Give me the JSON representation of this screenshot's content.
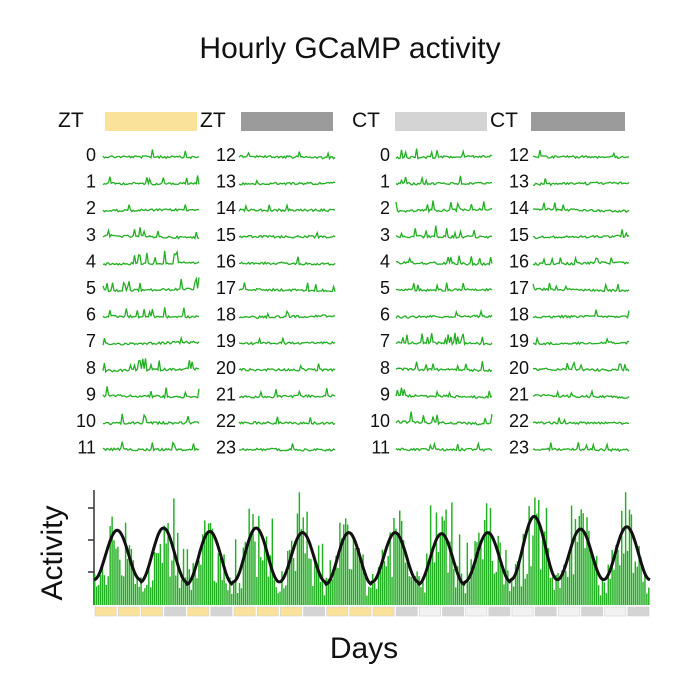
{
  "title": "Hourly GCaMP activity",
  "colors": {
    "trace": "#22b022",
    "bar": "#22b022",
    "fit": "#111111",
    "light_bar": "#fbe29a",
    "dark_bar": "#9b9b9b",
    "light_gray_bar": "#d4d4d4",
    "axis": "#333333"
  },
  "chart_data": [
    {
      "type": "line",
      "title": "",
      "panel": "ZT",
      "columns": [
        {
          "header": "ZT",
          "bar": "light",
          "rows": [
            "0",
            "1",
            "2",
            "3",
            "4",
            "5",
            "6",
            "7",
            "8",
            "9",
            "10",
            "11"
          ],
          "spikiness": [
            0.9,
            0.5,
            0.3,
            0.8,
            1.0,
            0.9,
            0.7,
            0.4,
            0.9,
            0.9,
            0.6,
            0.5
          ]
        },
        {
          "header": "ZT",
          "bar": "dark",
          "rows": [
            "12",
            "13",
            "14",
            "15",
            "16",
            "17",
            "18",
            "19",
            "20",
            "21",
            "22",
            "23"
          ],
          "spikiness": [
            0.3,
            0.2,
            0.2,
            0.2,
            0.4,
            0.5,
            0.2,
            0.4,
            0.2,
            0.6,
            0.3,
            0.4
          ]
        }
      ]
    },
    {
      "type": "line",
      "title": "",
      "panel": "CT",
      "columns": [
        {
          "header": "CT",
          "bar": "light_gray",
          "rows": [
            "0",
            "1",
            "2",
            "3",
            "4",
            "5",
            "6",
            "7",
            "8",
            "9",
            "10",
            "11"
          ],
          "spikiness": [
            0.7,
            0.6,
            0.8,
            0.9,
            0.5,
            0.6,
            0.3,
            0.9,
            1.0,
            0.4,
            0.9,
            0.4
          ]
        },
        {
          "header": "CT",
          "bar": "dark",
          "rows": [
            "12",
            "13",
            "14",
            "15",
            "16",
            "17",
            "18",
            "19",
            "20",
            "21",
            "22",
            "23"
          ],
          "spikiness": [
            0.3,
            0.3,
            0.4,
            0.6,
            0.3,
            0.3,
            0.4,
            0.4,
            0.6,
            0.2,
            0.3,
            0.4
          ]
        }
      ]
    },
    {
      "type": "bar",
      "title": "",
      "xlabel": "Days",
      "ylabel": "Activity",
      "days": 12,
      "hours_per_day": 24,
      "period_hours": 24,
      "fit_peaks": [
        0.65,
        0.67,
        0.64,
        0.67,
        0.63,
        0.63,
        0.63,
        0.62,
        0.63,
        0.77,
        0.66,
        0.68
      ],
      "fit_troughs": [
        0.22,
        0.2,
        0.18,
        0.2,
        0.2,
        0.18,
        0.2,
        0.18,
        0.2,
        0.22,
        0.22,
        0.22
      ],
      "day_bars": [
        [
          "light",
          "light"
        ],
        [
          "light",
          "gray"
        ],
        [
          "light",
          "gray"
        ],
        [
          "light",
          "light"
        ],
        [
          "light",
          "gray"
        ],
        [
          "light",
          "light"
        ],
        [
          "light",
          "gray"
        ],
        [
          "white",
          "gray"
        ],
        [
          "white",
          "gray"
        ],
        [
          "white",
          "gray"
        ],
        [
          "white",
          "gray"
        ],
        [
          "white",
          "gray"
        ]
      ]
    }
  ]
}
